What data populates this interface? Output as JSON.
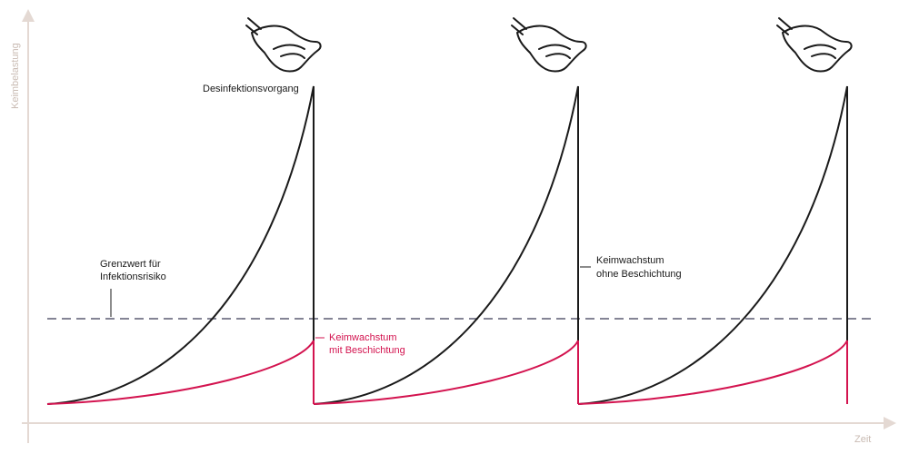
{
  "axes": {
    "y_label": "Keimbelastung",
    "x_label": "Zeit",
    "axis_color": "#e4d9d3",
    "label_color": "#c9bbb3"
  },
  "labels": {
    "disinfection": "Desinfektionsvorgang",
    "threshold_line1": "Grenzwert für",
    "threshold_line2": "Infektionsrisiko",
    "uncoated_line1": "Keimwachstum",
    "uncoated_line2": "ohne Beschichtung",
    "coated_line1": "Keimwachstum",
    "coated_line2": "mit Beschichtung"
  },
  "colors": {
    "uncoated_curve": "#1a1a1a",
    "coated_curve": "#d3134f",
    "threshold_line": "#5b5b72"
  },
  "icons": {
    "disinfection_hand": "hand-wiping-icon",
    "count": 3
  },
  "cycles": 3
}
